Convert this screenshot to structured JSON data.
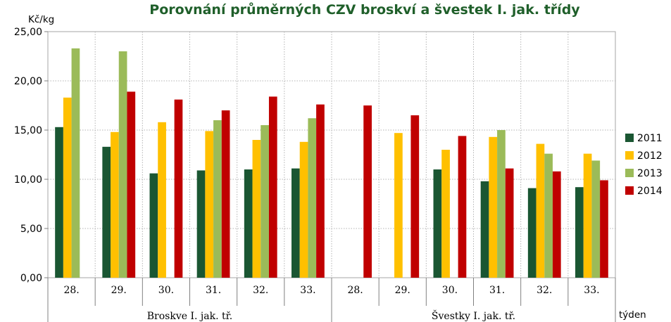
{
  "chart_data": {
    "type": "bar",
    "title": "Porovnání průměrných CZV broskví a švestek I. jak. třídy",
    "ylabel": "Kč/kg",
    "xlabel": "týden",
    "ylim": [
      0,
      25
    ],
    "yticks": [
      "0,00",
      "5,00",
      "10,00",
      "15,00",
      "20,00",
      "25,00"
    ],
    "grid": true,
    "legend_position": "right",
    "groups": [
      {
        "label": "Broskve I. jak. tř.",
        "categories": [
          "28.",
          "29.",
          "30.",
          "31.",
          "32.",
          "33."
        ]
      },
      {
        "label": "Švestky I. jak. tř.",
        "categories": [
          "28.",
          "29.",
          "30.",
          "31.",
          "32.",
          "33."
        ]
      }
    ],
    "series": [
      {
        "name": "2011",
        "color": "#1a5632",
        "values": [
          15.3,
          13.3,
          10.6,
          10.9,
          11.0,
          11.1,
          null,
          null,
          11.0,
          9.8,
          9.1,
          9.2
        ]
      },
      {
        "name": "2012",
        "color": "#ffc000",
        "values": [
          18.3,
          14.8,
          15.8,
          14.9,
          14.0,
          13.8,
          null,
          14.7,
          13.0,
          14.3,
          13.6,
          12.6
        ]
      },
      {
        "name": "2013",
        "color": "#9bbb59",
        "values": [
          23.3,
          23.0,
          null,
          16.0,
          15.5,
          16.2,
          null,
          null,
          null,
          15.0,
          12.6,
          11.9
        ]
      },
      {
        "name": "2014",
        "color": "#c00000",
        "values": [
          null,
          18.9,
          18.1,
          17.0,
          18.4,
          17.6,
          17.5,
          16.5,
          14.4,
          11.1,
          10.8,
          9.9
        ]
      }
    ]
  }
}
